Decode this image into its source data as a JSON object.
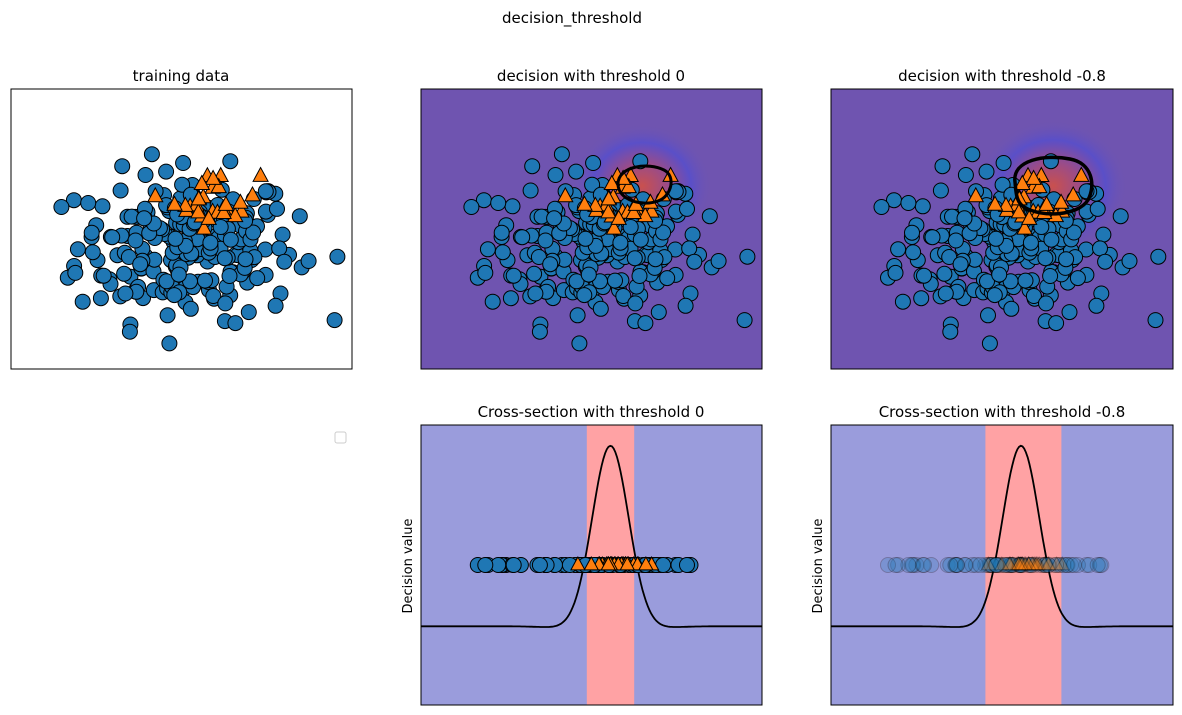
{
  "figure": {
    "suptitle": "decision_threshold"
  },
  "colors": {
    "class0": "#1f77b4",
    "class1": "#ff7f0e",
    "contour_bg": "#6f54b0",
    "contour_hot": "#b84a68",
    "blue_region": "#9a9cdc",
    "red_region": "#ffa2a4",
    "curve": "#000000"
  },
  "chart_data": [
    {
      "id": "training",
      "type": "scatter",
      "title": "training data",
      "xlim": [
        -3.6,
        3.6
      ],
      "ylim": [
        -3.6,
        3.6
      ],
      "axis_ticks": false,
      "series": [
        {
          "marker": "circle",
          "color": "#1f77b4"
        },
        {
          "marker": "triangle",
          "color": "#ff7f0e"
        }
      ]
    },
    {
      "id": "decision0",
      "type": "heatmap",
      "title": "decision with threshold 0",
      "threshold": 0,
      "xlim": [
        -3.6,
        3.6
      ],
      "ylim": [
        -3.6,
        3.6
      ],
      "axis_ticks": false,
      "contour": "black"
    },
    {
      "id": "decision08",
      "type": "heatmap",
      "title": "decision with threshold -0.8",
      "threshold": -0.8,
      "xlim": [
        -3.6,
        3.6
      ],
      "ylim": [
        -3.6,
        3.6
      ],
      "axis_ticks": false,
      "contour": "black"
    },
    {
      "id": "legend_panel",
      "type": "scatter",
      "legend": "top-right",
      "legend_entries": []
    },
    {
      "id": "cross0",
      "type": "line",
      "title": "Cross-section with threshold 0",
      "ylabel": "Decision value",
      "threshold": 0,
      "xlim": [
        -3.6,
        3.6
      ],
      "ylim": [
        -1.6,
        1.6
      ],
      "positive_region": [
        -0.1,
        0.9
      ],
      "axis_ticks": false,
      "points_alpha": 1.0
    },
    {
      "id": "cross08",
      "type": "line",
      "title": "Cross-section with threshold -0.8",
      "ylabel": "Decision value",
      "threshold": -0.8,
      "xlim": [
        -3.6,
        3.6
      ],
      "ylim": [
        -1.6,
        1.6
      ],
      "positive_region": [
        -0.35,
        1.25
      ],
      "axis_ticks": false,
      "points_alpha": 0.25
    }
  ]
}
